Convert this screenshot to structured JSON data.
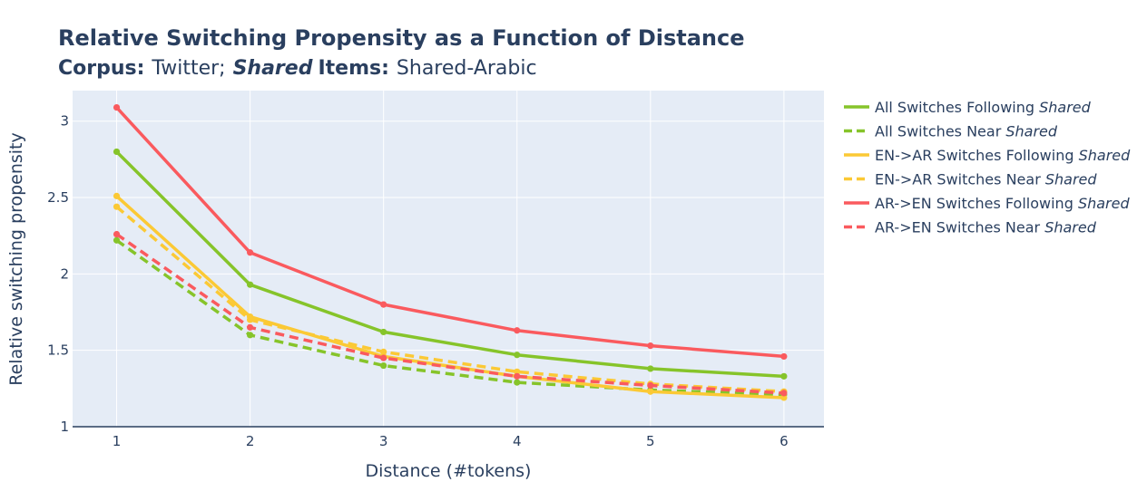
{
  "chart_data": {
    "type": "line",
    "title": "Relative Switching Propensity as a Function of Distance",
    "subtitle": {
      "corpus_label": "Corpus:",
      "corpus_value": "Twitter;",
      "shared_label": "Shared",
      "items_label": "Items:",
      "items_value": "Shared-Arabic"
    },
    "xlabel": "Distance (#tokens)",
    "ylabel": "Relative switching propensity",
    "x": [
      1,
      2,
      3,
      4,
      5,
      6
    ],
    "x_ticks": [
      "1",
      "2",
      "3",
      "4",
      "5",
      "6"
    ],
    "y_ticks": [
      "1",
      "1.5",
      "2",
      "2.5",
      "3"
    ],
    "xlim": [
      0.67,
      6.3
    ],
    "ylim": [
      1.0,
      3.2
    ],
    "grid": true,
    "legend_position": "right",
    "series": [
      {
        "name": "All Switches Following",
        "name_italic": "Shared",
        "color": "#86c42a",
        "dash": "solid",
        "values": [
          2.8,
          1.93,
          1.62,
          1.47,
          1.38,
          1.33
        ]
      },
      {
        "name": "All Switches Near",
        "name_italic": "Shared",
        "color": "#86c42a",
        "dash": "dash",
        "values": [
          2.22,
          1.6,
          1.4,
          1.29,
          1.24,
          1.21
        ]
      },
      {
        "name": "EN->AR Switches Following",
        "name_italic": "Shared",
        "color": "#fbc935",
        "dash": "solid",
        "values": [
          2.51,
          1.72,
          1.46,
          1.33,
          1.23,
          1.19
        ]
      },
      {
        "name": "EN->AR Switches Near",
        "name_italic": "Shared",
        "color": "#fbc935",
        "dash": "dash",
        "values": [
          2.44,
          1.7,
          1.49,
          1.36,
          1.28,
          1.23
        ]
      },
      {
        "name": "AR->EN Switches Following",
        "name_italic": "Shared",
        "color": "#fa5a5e",
        "dash": "solid",
        "values": [
          3.09,
          2.14,
          1.8,
          1.63,
          1.53,
          1.46
        ]
      },
      {
        "name": "AR->EN Switches Near",
        "name_italic": "Shared",
        "color": "#fa5a5e",
        "dash": "dash",
        "values": [
          2.26,
          1.65,
          1.45,
          1.33,
          1.27,
          1.22
        ]
      }
    ]
  }
}
